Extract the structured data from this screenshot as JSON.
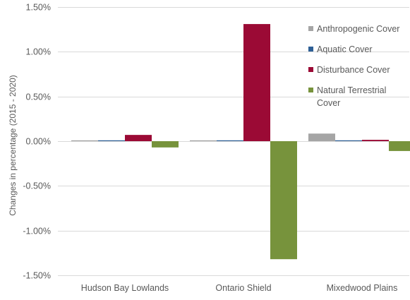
{
  "chart_data": {
    "type": "bar",
    "title": "",
    "xlabel": "",
    "ylabel": "Changes in percentage (2015 - 2020)",
    "ylim": [
      -1.5,
      1.5
    ],
    "yticks": [
      1.5,
      1.0,
      0.5,
      0.0,
      -0.5,
      -1.0,
      -1.5
    ],
    "ytick_labels": [
      "1.50%",
      "1.00%",
      "0.50%",
      "0.00%",
      "-0.50%",
      "-1.00%",
      "-1.50%"
    ],
    "grid": true,
    "legend_position": "right",
    "categories": [
      "Hudson Bay Lowlands",
      "Ontario Shield",
      "Mixedwood Plains"
    ],
    "series": [
      {
        "name": "Anthropogenic Cover",
        "color": "#a5a5a5",
        "values": [
          0.005,
          0.005,
          0.085
        ]
      },
      {
        "name": "Aquatic Cover",
        "color": "#2e5f95",
        "values": [
          0.005,
          0.005,
          0.005
        ]
      },
      {
        "name": "Disturbance Cover",
        "color": "#9b0a35",
        "values": [
          0.07,
          1.31,
          0.015
        ]
      },
      {
        "name": "Natural Terrestrial Cover",
        "color": "#77933c",
        "values": [
          -0.07,
          -1.32,
          -0.11
        ]
      }
    ],
    "legend_labels": [
      [
        "Anthropogenic Cover"
      ],
      [
        "Aquatic Cover"
      ],
      [
        "Disturbance Cover"
      ],
      [
        "Natural Terrestrial",
        "Cover"
      ]
    ]
  }
}
